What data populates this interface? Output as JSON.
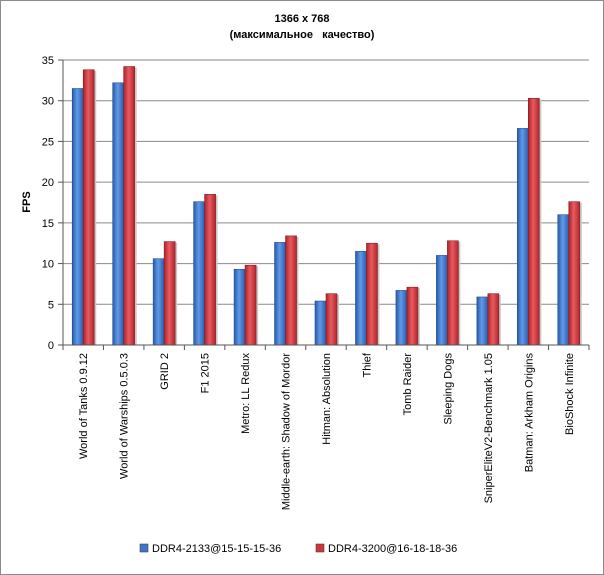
{
  "chart_data": {
    "type": "bar",
    "title": "1366 x 768",
    "subtitle": "(максимальное   качество)",
    "ylabel": "FPS",
    "xlabel": "",
    "ylim": [
      0,
      35
    ],
    "yticks": [
      0,
      5,
      10,
      15,
      20,
      25,
      30,
      35
    ],
    "grid": "horizontal",
    "legend_position": "bottom",
    "categories": [
      "World of Tanks 0.9.12",
      "World of Warships 0.5.0.3",
      "GRID 2",
      "F1 2015",
      "Metro: LL Redux",
      "Middle-earth: Shadow of Mordor",
      "Hitman: Absolution",
      "Thief",
      "Tomb Raider",
      "Sleeping Dogs",
      "SniperEliteV2-Benchmark 1.05",
      "Batman: Arkham Origins",
      "BioShock Infinite"
    ],
    "series": [
      {
        "name": "DDR4-2133@15-15-15-36",
        "color": "#3b76cc",
        "values": [
          31.5,
          32.2,
          10.6,
          17.6,
          9.3,
          12.6,
          5.4,
          11.5,
          6.7,
          11.0,
          5.9,
          26.6,
          16.0
        ]
      },
      {
        "name": "DDR4-3200@16-18-18-36",
        "color": "#d2343a",
        "values": [
          33.8,
          34.2,
          12.7,
          18.5,
          9.8,
          13.4,
          6.3,
          12.5,
          7.1,
          12.8,
          6.3,
          30.3,
          17.6
        ]
      }
    ]
  }
}
